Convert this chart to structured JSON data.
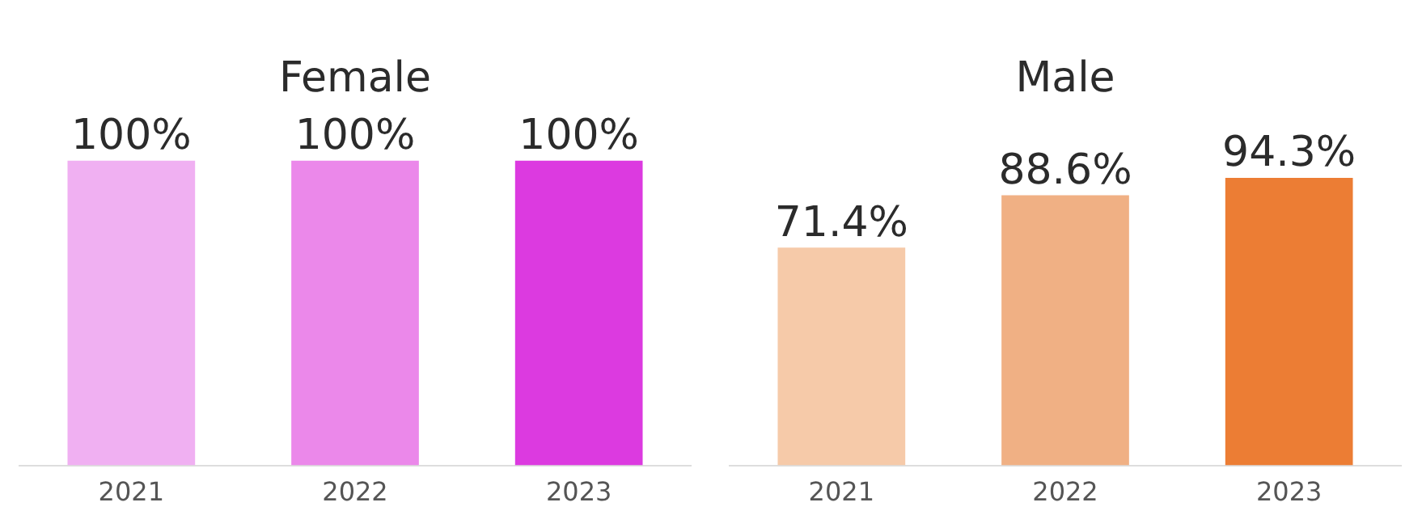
{
  "chart_data": [
    {
      "type": "bar",
      "title": "Female",
      "categories": [
        "2021",
        "2022",
        "2023"
      ],
      "values": [
        100,
        100,
        100
      ],
      "colors": [
        "#f0b0f2",
        "#eb88ea",
        "#dc3ae0"
      ],
      "value_labels": [
        "100%",
        "100%",
        "100%"
      ],
      "tick_labels": "x"
    },
    {
      "type": "bar",
      "title": "Male",
      "categories": [
        "2021",
        "2022",
        "2023"
      ],
      "values": [
        71.4,
        88.6,
        94.3
      ],
      "colors": [
        "#f6caa9",
        "#f0b084",
        "#ec7d34"
      ],
      "value_labels": [
        "71.4%",
        "88.6%",
        "94.3%"
      ],
      "tick_labels": "x"
    }
  ]
}
